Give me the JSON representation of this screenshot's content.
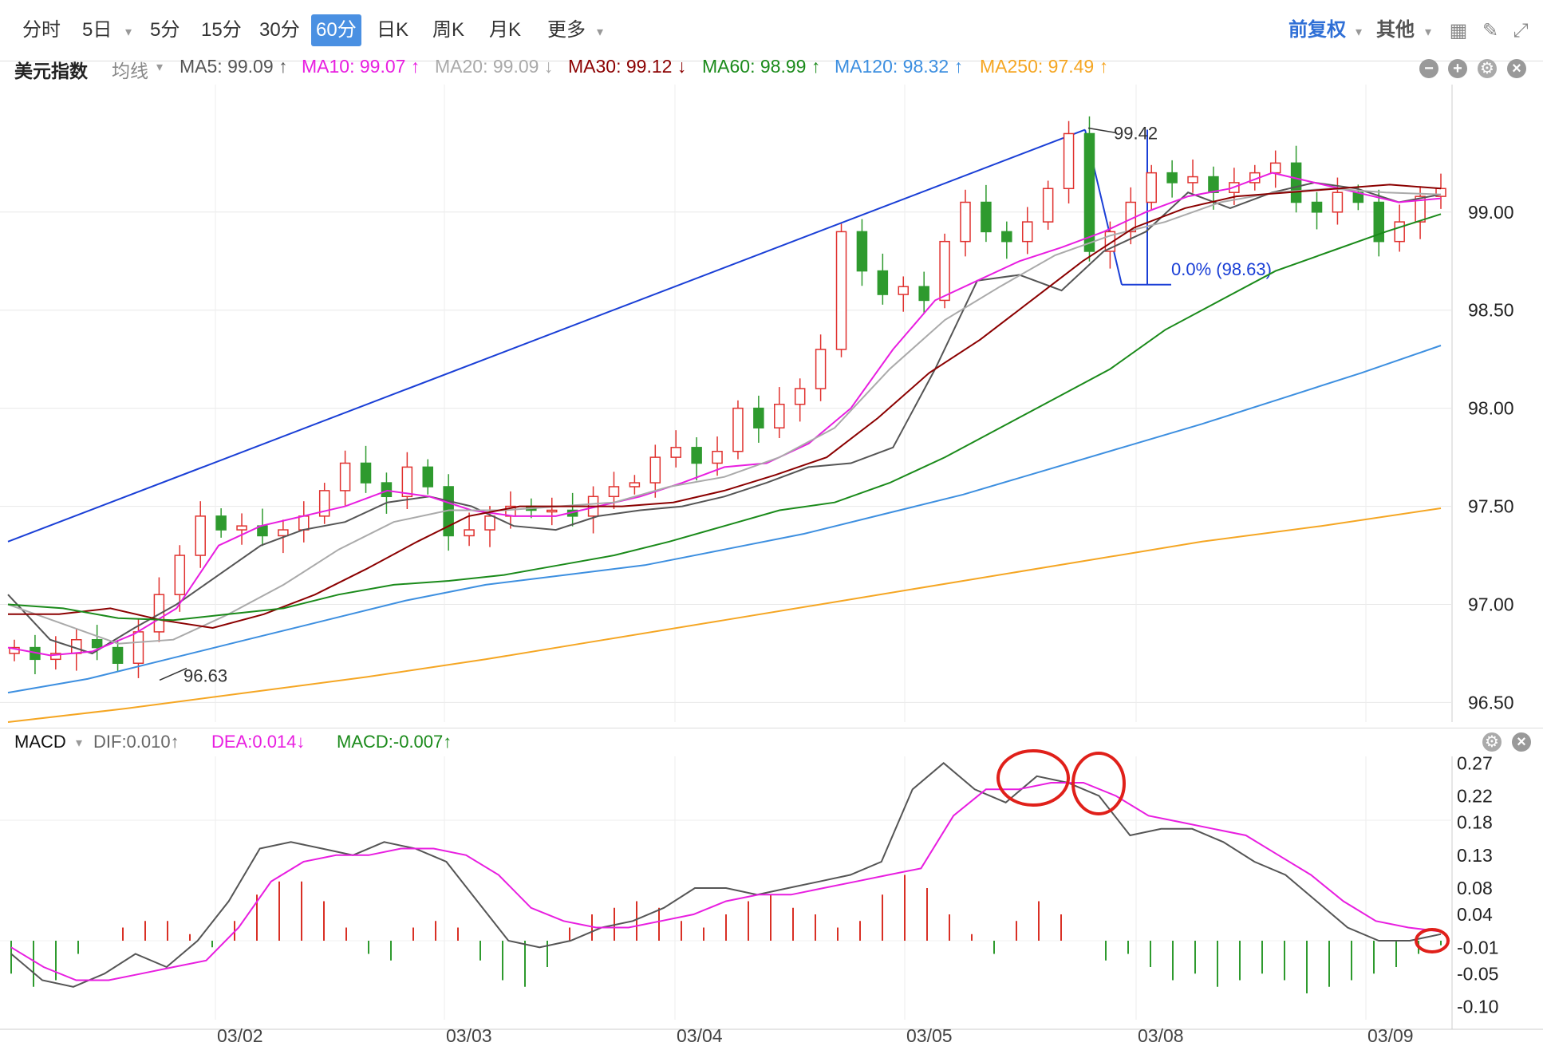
{
  "toolbar": {
    "periods": [
      "分时",
      "5日",
      "5分",
      "15分",
      "30分",
      "60分",
      "日K",
      "周K",
      "月K",
      "更多"
    ],
    "active_period": "60分",
    "adjust": "前复权",
    "other": "其他",
    "icons": [
      "grid-icon",
      "draw-icon",
      "fullscreen-icon"
    ]
  },
  "main": {
    "symbol": "美元指数",
    "line_type": "均线",
    "ma": [
      {
        "label": "MA5: 99.09 ↑",
        "color": "#555555"
      },
      {
        "label": "MA10: 99.07 ↑",
        "color": "#e81ee0"
      },
      {
        "label": "MA20: 99.09 ↓",
        "color": "#aaaaaa"
      },
      {
        "label": "MA30: 99.12 ↓",
        "color": "#8b0000"
      },
      {
        "label": "MA60: 98.99 ↑",
        "color": "#1a8a1a"
      },
      {
        "label": "MA120: 98.32 ↑",
        "color": "#3d8fe0"
      },
      {
        "label": "MA250: 97.49 ↑",
        "color": "#f5a623"
      }
    ]
  },
  "macd": {
    "title": "MACD",
    "dif_label": "DIF:0.010↑",
    "dea_label": "DEA:0.014↓",
    "macd_label": "MACD:-0.007↑"
  },
  "chart_data": [
    {
      "type": "candlestick",
      "title": "美元指数",
      "ylim": [
        96.4,
        99.65
      ],
      "yticks": [
        "99.00",
        "98.50",
        "98.00",
        "97.50",
        "97.00",
        "96.50"
      ],
      "xticks": [
        "03/02",
        "03/03",
        "03/04",
        "03/05",
        "03/08",
        "03/09"
      ],
      "annotations": {
        "high": "99.42",
        "low": "96.63",
        "fib": "0.0% (98.63)"
      },
      "price_path": [
        96.78,
        96.72,
        96.75,
        96.82,
        96.78,
        96.7,
        96.86,
        97.05,
        97.25,
        97.45,
        97.38,
        97.4,
        97.35,
        97.38,
        97.45,
        97.58,
        97.72,
        97.62,
        97.55,
        97.7,
        97.6,
        97.35,
        97.38,
        97.45,
        97.5,
        97.48,
        97.48,
        97.45,
        97.55,
        97.6,
        97.62,
        97.75,
        97.8,
        97.72,
        97.78,
        98.0,
        97.9,
        98.02,
        98.1,
        98.3,
        98.9,
        98.7,
        98.58,
        98.62,
        98.55,
        98.85,
        99.05,
        98.9,
        98.85,
        98.95,
        99.12,
        99.4,
        98.8,
        98.9,
        99.05,
        99.2,
        99.15,
        99.18,
        99.1,
        99.15,
        99.2,
        99.25,
        99.05,
        99.0,
        99.1,
        99.05,
        98.85,
        98.95,
        99.08,
        99.12
      ],
      "series": [
        {
          "name": "MA5",
          "color": "#555555",
          "values": [
            97.05,
            96.82,
            96.75,
            96.88,
            97.0,
            97.15,
            97.3,
            97.38,
            97.42,
            97.52,
            97.55,
            97.5,
            97.4,
            97.38,
            97.45,
            97.48,
            97.5,
            97.55,
            97.62,
            97.7,
            97.72,
            97.8,
            98.2,
            98.65,
            98.68,
            98.6,
            98.8,
            98.9,
            99.1,
            99.02,
            99.1,
            99.15,
            99.12,
            99.05,
            99.09
          ]
        },
        {
          "name": "MA10",
          "color": "#e81ee0",
          "values": [
            96.78,
            96.74,
            96.76,
            96.85,
            96.98,
            97.3,
            97.4,
            97.45,
            97.5,
            97.58,
            97.55,
            97.48,
            97.45,
            97.45,
            97.5,
            97.55,
            97.62,
            97.7,
            97.72,
            97.82,
            98.0,
            98.3,
            98.55,
            98.65,
            98.75,
            98.82,
            98.9,
            99.0,
            99.08,
            99.12,
            99.2,
            99.15,
            99.1,
            99.05,
            99.07
          ]
        },
        {
          "name": "MA20",
          "color": "#aaaaaa",
          "values": [
            97.0,
            96.9,
            96.8,
            96.82,
            96.95,
            97.1,
            97.28,
            97.42,
            97.48,
            97.48,
            97.5,
            97.52,
            97.6,
            97.65,
            97.75,
            97.9,
            98.2,
            98.45,
            98.62,
            98.78,
            98.88,
            98.95,
            99.05,
            99.1,
            99.12,
            99.1,
            99.09
          ]
        },
        {
          "name": "MA30",
          "color": "#8b0000",
          "values": [
            96.95,
            96.95,
            96.98,
            96.92,
            96.88,
            96.95,
            97.05,
            97.18,
            97.32,
            97.45,
            97.5,
            97.5,
            97.5,
            97.52,
            97.58,
            97.66,
            97.75,
            97.95,
            98.18,
            98.35,
            98.55,
            98.75,
            98.92,
            99.02,
            99.08,
            99.1,
            99.12,
            99.14,
            99.12
          ]
        },
        {
          "name": "MA60",
          "color": "#1a8a1a",
          "values": [
            97.0,
            96.98,
            96.93,
            96.92,
            96.95,
            96.98,
            97.05,
            97.1,
            97.12,
            97.15,
            97.2,
            97.25,
            97.32,
            97.4,
            97.48,
            97.52,
            97.62,
            97.75,
            97.9,
            98.05,
            98.2,
            98.4,
            98.55,
            98.7,
            98.8,
            98.9,
            98.99
          ]
        },
        {
          "name": "MA120",
          "color": "#3d8fe0",
          "values": [
            96.55,
            96.62,
            96.72,
            96.82,
            96.92,
            97.02,
            97.1,
            97.15,
            97.2,
            97.28,
            97.36,
            97.46,
            97.56,
            97.68,
            97.8,
            97.92,
            98.05,
            98.18,
            98.32
          ]
        },
        {
          "name": "MA250",
          "color": "#f5a623",
          "values": [
            96.4,
            96.47,
            96.55,
            96.63,
            96.72,
            96.82,
            96.92,
            97.02,
            97.12,
            97.22,
            97.32,
            97.4,
            97.49
          ]
        }
      ]
    },
    {
      "type": "line",
      "title": "MACD",
      "ylim": [
        -0.12,
        0.28
      ],
      "yticks": [
        "0.27",
        "0.22",
        "0.18",
        "0.13",
        "0.08",
        "0.04",
        "-0.01",
        "-0.05",
        "-0.10"
      ],
      "series": [
        {
          "name": "DIF",
          "color": "#555555",
          "values": [
            -0.02,
            -0.06,
            -0.07,
            -0.05,
            -0.02,
            -0.04,
            0.0,
            0.06,
            0.14,
            0.15,
            0.14,
            0.13,
            0.15,
            0.14,
            0.12,
            0.06,
            0.0,
            -0.01,
            0.0,
            0.02,
            0.03,
            0.05,
            0.08,
            0.08,
            0.07,
            0.08,
            0.09,
            0.1,
            0.12,
            0.23,
            0.27,
            0.23,
            0.21,
            0.25,
            0.24,
            0.22,
            0.16,
            0.17,
            0.17,
            0.15,
            0.12,
            0.1,
            0.06,
            0.02,
            0.0,
            0.0,
            0.01
          ]
        },
        {
          "name": "DEA",
          "color": "#e81ee0",
          "values": [
            -0.01,
            -0.04,
            -0.06,
            -0.06,
            -0.05,
            -0.04,
            -0.03,
            0.02,
            0.09,
            0.12,
            0.13,
            0.13,
            0.14,
            0.14,
            0.13,
            0.1,
            0.05,
            0.03,
            0.02,
            0.02,
            0.03,
            0.04,
            0.06,
            0.07,
            0.07,
            0.08,
            0.09,
            0.1,
            0.11,
            0.19,
            0.23,
            0.23,
            0.24,
            0.24,
            0.22,
            0.19,
            0.18,
            0.17,
            0.16,
            0.13,
            0.1,
            0.06,
            0.03,
            0.02,
            0.014
          ]
        },
        {
          "name": "MACD",
          "color": "#d93025",
          "values": [
            -0.05,
            -0.07,
            -0.06,
            -0.02,
            0.0,
            0.02,
            0.03,
            0.03,
            0.01,
            -0.01,
            0.03,
            0.07,
            0.09,
            0.09,
            0.06,
            0.02,
            -0.02,
            -0.03,
            0.02,
            0.03,
            0.02,
            -0.03,
            -0.06,
            -0.07,
            -0.04,
            0.02,
            0.04,
            0.05,
            0.06,
            0.05,
            0.03,
            0.02,
            0.04,
            0.06,
            0.07,
            0.05,
            0.04,
            0.02,
            0.03,
            0.07,
            0.1,
            0.08,
            0.04,
            0.01,
            -0.02,
            0.03,
            0.06,
            0.04,
            0.0,
            -0.03,
            -0.02,
            -0.04,
            -0.06,
            -0.05,
            -0.07,
            -0.06,
            -0.05,
            -0.06,
            -0.08,
            -0.07,
            -0.06,
            -0.05,
            -0.04,
            -0.02,
            -0.007
          ]
        }
      ]
    }
  ]
}
